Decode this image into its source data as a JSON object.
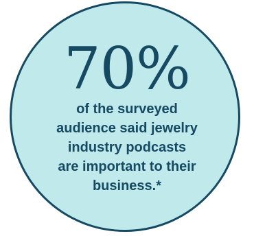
{
  "stat": {
    "percent": "70%",
    "caption_lines": [
      "of the surveyed",
      "audience said jewelry",
      "industry podcasts",
      "are important to their",
      "business.*"
    ]
  },
  "colors": {
    "circle_fill": "#bfe9ea",
    "circle_border": "#164a63",
    "text": "#164a63"
  }
}
